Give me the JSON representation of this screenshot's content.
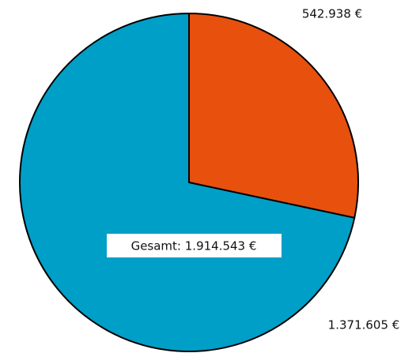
{
  "chart_data": {
    "type": "pie",
    "values": [
      542938,
      1371605
    ],
    "value_labels": [
      "542.938 €",
      "1.371.605 €"
    ],
    "colors": [
      "#e8500e",
      "#009fc7"
    ],
    "annotation": "Gesamt: 1.914.543 €"
  }
}
